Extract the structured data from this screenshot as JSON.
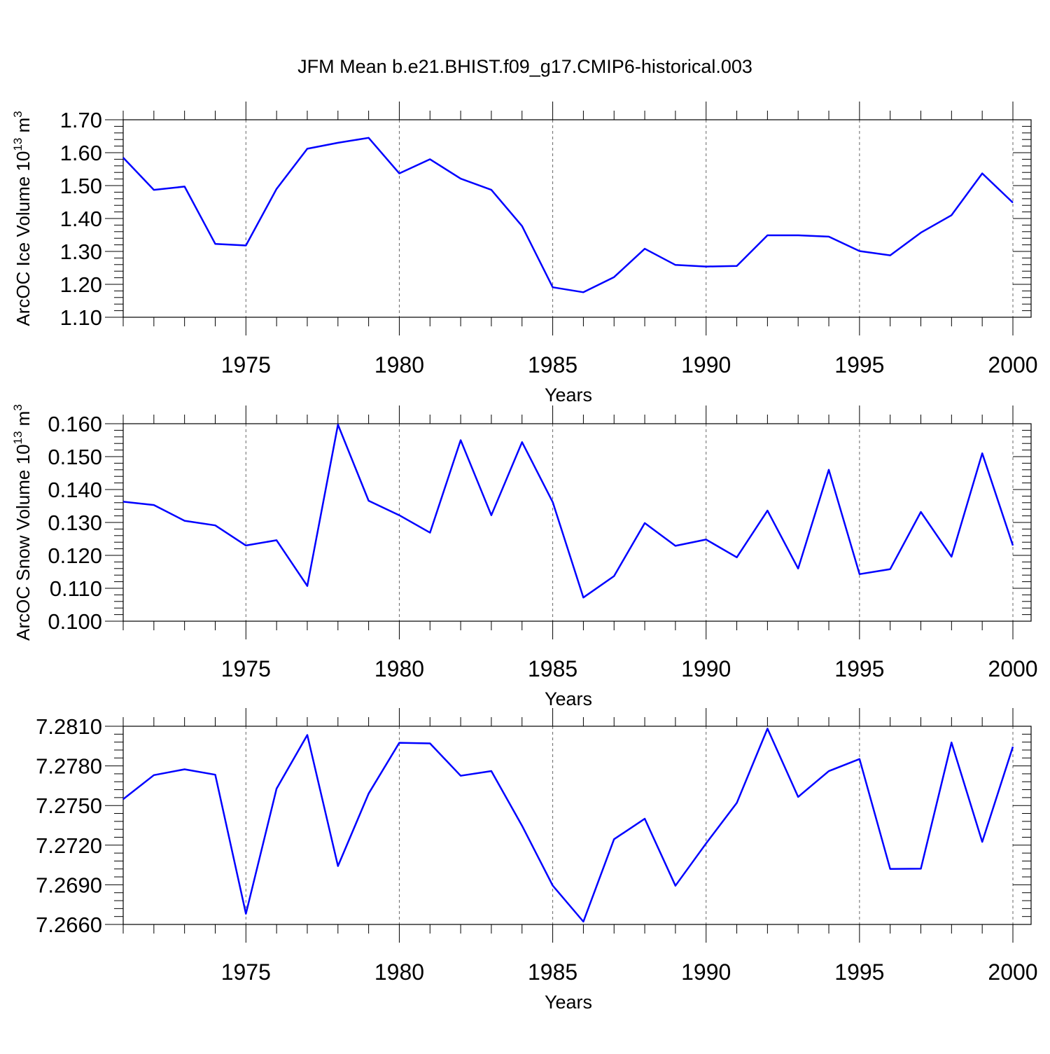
{
  "figure": {
    "title": "JFM Mean b.e21.BHIST.f09_g17.CMIP6-historical.003",
    "line_color": "#0000ff"
  },
  "chart_data": [
    {
      "type": "line",
      "title": "",
      "xlabel": "Years",
      "ylabel": "ArcOC Ice Volume 10",
      "ylabel_exp": "13",
      "ylabel_unit": " m",
      "ylabel_unit_exp": "3",
      "xlim": [
        1971,
        2000
      ],
      "ylim": [
        1.1,
        1.7
      ],
      "grid": "dashed vertical at major x ticks",
      "xticks": [
        1975,
        1980,
        1985,
        1990,
        1995,
        2000
      ],
      "xtick_labels": [
        "1975",
        "1980",
        "1985",
        "1990",
        "1995",
        "2000"
      ],
      "yticks": [
        1.1,
        1.2,
        1.3,
        1.4,
        1.5,
        1.6,
        1.7
      ],
      "ytick_labels": [
        "1.10",
        "1.20",
        "1.30",
        "1.40",
        "1.50",
        "1.60",
        "1.70"
      ],
      "x": [
        1971,
        1972,
        1973,
        1974,
        1975,
        1976,
        1977,
        1978,
        1979,
        1980,
        1981,
        1982,
        1983,
        1984,
        1985,
        1986,
        1987,
        1988,
        1989,
        1990,
        1991,
        1992,
        1993,
        1994,
        1995,
        1996,
        1997,
        1998,
        1999,
        2000
      ],
      "series": [
        {
          "values": [
            1.585,
            1.487,
            1.497,
            1.323,
            1.318,
            1.49,
            1.612,
            1.63,
            1.645,
            1.537,
            1.58,
            1.521,
            1.487,
            1.377,
            1.191,
            1.176,
            1.222,
            1.308,
            1.259,
            1.254,
            1.256,
            1.349,
            1.349,
            1.345,
            1.301,
            1.288,
            1.357,
            1.41,
            1.537,
            1.448
          ]
        }
      ]
    },
    {
      "type": "line",
      "title": "",
      "xlabel": "Years",
      "ylabel": "ArcOC Snow Volume 10",
      "ylabel_exp": "13",
      "ylabel_unit": " m",
      "ylabel_unit_exp": "3",
      "xlim": [
        1971,
        2000
      ],
      "ylim": [
        0.1,
        0.16
      ],
      "grid": "dashed vertical at major x ticks",
      "xticks": [
        1975,
        1980,
        1985,
        1990,
        1995,
        2000
      ],
      "xtick_labels": [
        "1975",
        "1980",
        "1985",
        "1990",
        "1995",
        "2000"
      ],
      "yticks": [
        0.1,
        0.11,
        0.12,
        0.13,
        0.14,
        0.15,
        0.16
      ],
      "ytick_labels": [
        "0.100",
        "0.110",
        "0.120",
        "0.130",
        "0.140",
        "0.150",
        "0.160"
      ],
      "x": [
        1971,
        1972,
        1973,
        1974,
        1975,
        1976,
        1977,
        1978,
        1979,
        1980,
        1981,
        1982,
        1983,
        1984,
        1985,
        1986,
        1987,
        1988,
        1989,
        1990,
        1991,
        1992,
        1993,
        1994,
        1995,
        1996,
        1997,
        1998,
        1999,
        2000
      ],
      "series": [
        {
          "values": [
            0.1363,
            0.1353,
            0.1305,
            0.1291,
            0.123,
            0.1246,
            0.1107,
            0.1597,
            0.1366,
            0.1322,
            0.1269,
            0.155,
            0.1322,
            0.1544,
            0.1362,
            0.1072,
            0.1137,
            0.1298,
            0.1229,
            0.1248,
            0.1194,
            0.1336,
            0.116,
            0.146,
            0.1143,
            0.1158,
            0.1332,
            0.1196,
            0.151,
            0.123
          ]
        }
      ]
    },
    {
      "type": "line",
      "title": "",
      "xlabel": "Years",
      "ylabel": "",
      "xlim": [
        1971,
        2000
      ],
      "ylim": [
        7.266,
        7.281
      ],
      "grid": "dashed vertical at major x ticks",
      "xticks": [
        1975,
        1980,
        1985,
        1990,
        1995,
        2000
      ],
      "xtick_labels": [
        "1975",
        "1980",
        "1985",
        "1990",
        "1995",
        "2000"
      ],
      "yticks": [
        7.266,
        7.269,
        7.272,
        7.275,
        7.278,
        7.281
      ],
      "ytick_labels": [
        "7.2660",
        "7.2690",
        "7.2720",
        "7.2750",
        "7.2780",
        "7.2810"
      ],
      "x": [
        1971,
        1972,
        1973,
        1974,
        1975,
        1976,
        1977,
        1978,
        1979,
        1980,
        1981,
        1982,
        1983,
        1984,
        1985,
        1986,
        1987,
        1988,
        1989,
        1990,
        1991,
        1992,
        1993,
        1994,
        1995,
        1996,
        1997,
        1998,
        1999,
        2000
      ],
      "series": [
        {
          "values": [
            7.27548,
            7.2773,
            7.27774,
            7.27733,
            7.26681,
            7.27628,
            7.28034,
            7.27042,
            7.2759,
            7.27975,
            7.2797,
            7.27725,
            7.27761,
            7.27347,
            7.26894,
            7.26621,
            7.27245,
            7.274,
            7.26893,
            7.27213,
            7.2752,
            7.28082,
            7.27565,
            7.2776,
            7.27852,
            7.2702,
            7.27022,
            7.27977,
            7.27225,
            7.27945
          ]
        }
      ]
    }
  ]
}
